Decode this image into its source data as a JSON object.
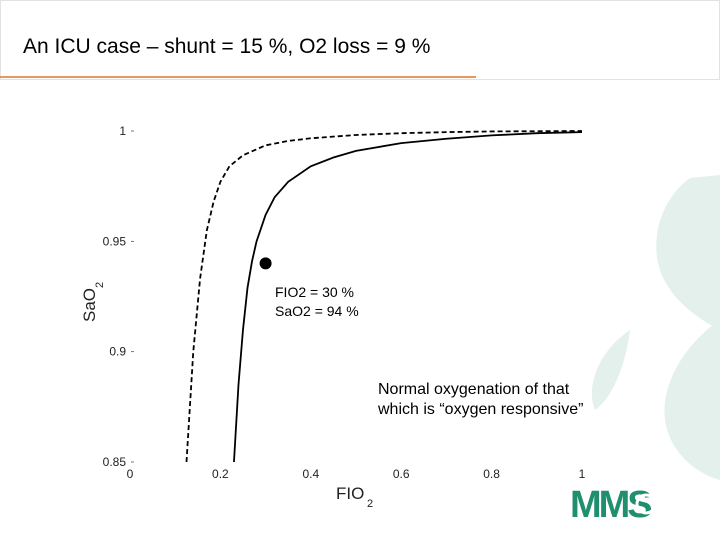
{
  "slide": {
    "title": "An ICU case – shunt = 15 %,  O2 loss = 9 %"
  },
  "logo": {
    "text": "MMS",
    "color": "#1f8f6e"
  },
  "decoration_color": "#e3f0ec",
  "chart_data": {
    "type": "line",
    "xlabel": "FIO",
    "xlabel_sub": "2",
    "ylabel": "SaO",
    "ylabel_sub": "2",
    "xlim": [
      0,
      1
    ],
    "ylim": [
      0.85,
      1
    ],
    "xticks": [
      {
        "value": 0,
        "label": "0"
      },
      {
        "value": 0.2,
        "label": "0.2"
      },
      {
        "value": 0.4,
        "label": "0.4"
      },
      {
        "value": 0.6,
        "label": "0.6"
      },
      {
        "value": 0.8,
        "label": "0.8"
      },
      {
        "value": 1,
        "label": "1"
      }
    ],
    "yticks": [
      {
        "value": 0.85,
        "label": "0.85"
      },
      {
        "value": 0.9,
        "label": "0.9"
      },
      {
        "value": 0.95,
        "label": "0.95"
      },
      {
        "value": 1,
        "label": "1"
      }
    ],
    "grid": false,
    "series": [
      {
        "style": "dashed",
        "x": [
          0.125,
          0.14,
          0.155,
          0.17,
          0.185,
          0.2,
          0.22,
          0.25,
          0.3,
          0.35,
          0.4,
          0.5,
          0.6,
          0.7,
          0.8,
          1.0
        ],
        "y": [
          0.85,
          0.9,
          0.933,
          0.955,
          0.968,
          0.977,
          0.984,
          0.989,
          0.9935,
          0.9955,
          0.9967,
          0.9982,
          0.999,
          0.9995,
          0.9998,
          1.0
        ]
      },
      {
        "style": "solid",
        "x": [
          0.23,
          0.24,
          0.25,
          0.26,
          0.27,
          0.28,
          0.3,
          0.32,
          0.35,
          0.4,
          0.45,
          0.5,
          0.6,
          0.7,
          0.8,
          0.9,
          1.0
        ],
        "y": [
          0.85,
          0.885,
          0.91,
          0.929,
          0.941,
          0.95,
          0.962,
          0.97,
          0.977,
          0.984,
          0.988,
          0.991,
          0.9945,
          0.9965,
          0.998,
          0.999,
          0.9995
        ]
      }
    ],
    "marker": {
      "x": 0.3,
      "y": 0.94
    },
    "annotations": [
      {
        "lines": [
          "FIO2 = 30 %",
          "SaO2 = 94 %"
        ]
      },
      {
        "lines": [
          "Normal oxygenation of that",
          "which is “oxygen responsive”"
        ]
      }
    ]
  }
}
